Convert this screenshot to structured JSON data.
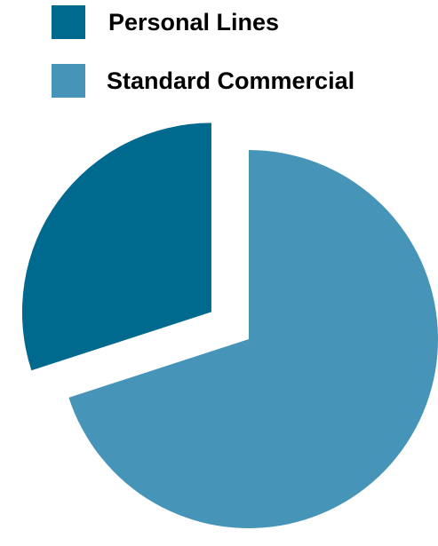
{
  "chart_data": {
    "type": "pie",
    "title": "",
    "legend_position": "top-left",
    "exploded": true,
    "series": [
      {
        "categories": [
          "Personal Lines",
          "Standard Commercial"
        ],
        "values": [
          30,
          70
        ],
        "colors": [
          "#006a8e",
          "#4695b8"
        ]
      }
    ],
    "legend": [
      {
        "label": "Personal Lines",
        "color": "#006a8e"
      },
      {
        "label": "Standard Commercial",
        "color": "#4695b8"
      }
    ]
  }
}
